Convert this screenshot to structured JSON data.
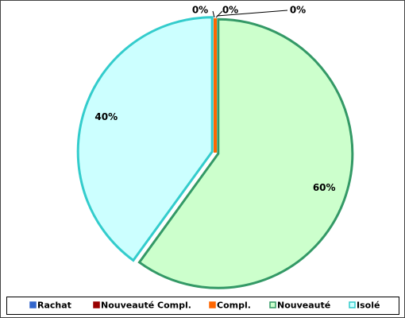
{
  "chart_data": {
    "type": "pie",
    "categories": [
      "Rachat",
      "Nouveauté Compl.",
      "Compl.",
      "Nouveauté",
      "Isolé"
    ],
    "values": [
      0,
      0,
      0,
      60,
      40
    ],
    "value_labels": [
      "0%",
      "0%",
      "0%",
      "60%",
      "40%"
    ],
    "colors": [
      "#3366cc",
      "#990000",
      "#ff6600",
      "#ccffcc",
      "#ccffff"
    ],
    "edge_colors": [
      "#3366cc",
      "#990000",
      "#ff6600",
      "#339966",
      "#33cccc"
    ],
    "legend": "bottom"
  }
}
